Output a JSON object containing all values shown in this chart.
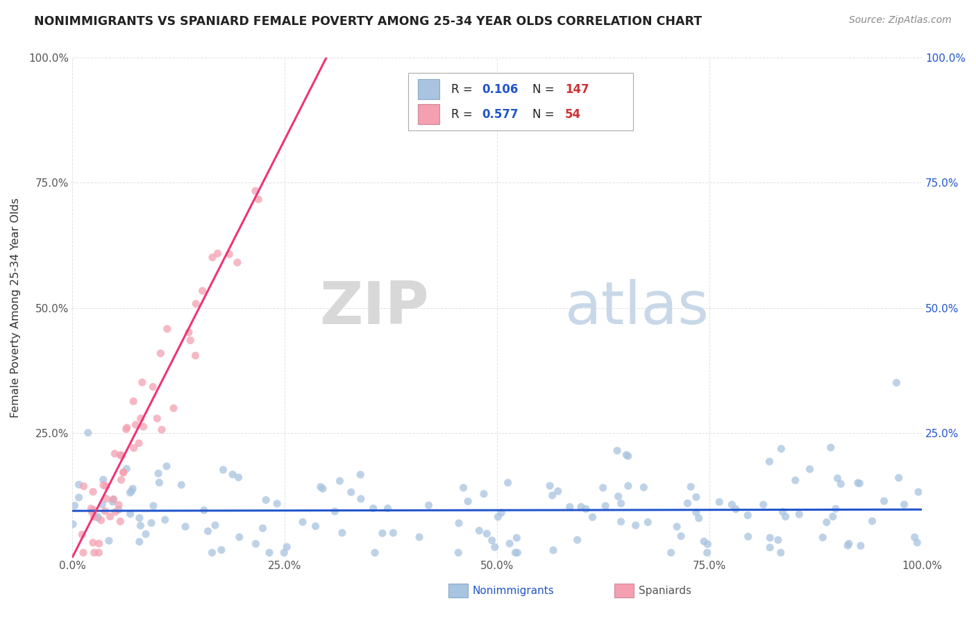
{
  "title": "NONIMMIGRANTS VS SPANIARD FEMALE POVERTY AMONG 25-34 YEAR OLDS CORRELATION CHART",
  "source": "Source: ZipAtlas.com",
  "ylabel": "Female Poverty Among 25-34 Year Olds",
  "xlim": [
    0.0,
    1.0
  ],
  "ylim": [
    0.0,
    1.0
  ],
  "xtick_positions": [
    0.0,
    0.25,
    0.5,
    0.75,
    1.0
  ],
  "xtick_labels": [
    "0.0%",
    "25.0%",
    "50.0%",
    "75.0%",
    "100.0%"
  ],
  "ytick_positions": [
    0.0,
    0.25,
    0.5,
    0.75,
    1.0
  ],
  "ytick_labels_left": [
    "",
    "25.0%",
    "50.0%",
    "75.0%",
    "100.0%"
  ],
  "ytick_labels_right": [
    "",
    "25.0%",
    "50.0%",
    "75.0%",
    "100.0%"
  ],
  "nonimmigrant_color": "#a8c4e0",
  "spaniard_color": "#f4a0b0",
  "nonimmigrant_line_color": "#2255cc",
  "spaniard_line_color": "#ee3377",
  "R_nonimmigrant": 0.106,
  "N_nonimmigrant": 147,
  "R_spaniard": 0.577,
  "N_spaniard": 54,
  "legend_label_1": "Nonimmigrants",
  "legend_label_2": "Spaniards",
  "watermark_zip": "ZIP",
  "watermark_atlas": "atlas",
  "background_color": "#ffffff",
  "grid_color": "#dddddd",
  "title_color": "#222222",
  "source_color": "#888888",
  "axis_label_color": "#333333",
  "tick_color": "#555555",
  "right_tick_color": "#2255cc",
  "legend_r_color": "#2255cc",
  "legend_n_color": "#cc3333"
}
